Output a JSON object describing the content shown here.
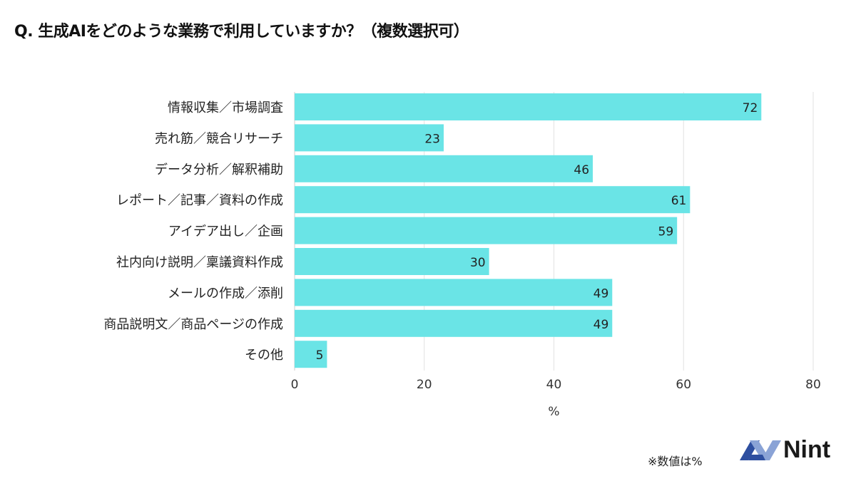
{
  "chart_data": {
    "type": "bar",
    "orientation": "horizontal",
    "title": "Q. 生成AIをどのような業務で利用していますか？（複数選択可）",
    "categories": [
      "情報収集／市場調査",
      "売れ筋／競合リサーチ",
      "データ分析／解釈補助",
      "レポート／記事／資料の作成",
      "アイデア出し／企画",
      "社内向け説明／稟議資料作成",
      "メールの作成／添削",
      "商品説明文／商品ページの作成",
      "その他"
    ],
    "values": [
      72,
      23,
      46,
      61,
      59,
      30,
      49,
      49,
      5
    ],
    "xlabel": "%",
    "xlim": [
      0,
      80
    ],
    "xticks": [
      0,
      20,
      40,
      60,
      80
    ],
    "grid": true,
    "bar_color": "#6ae4e6"
  },
  "footer": {
    "note": "※数値は%",
    "logo": "Nint"
  }
}
